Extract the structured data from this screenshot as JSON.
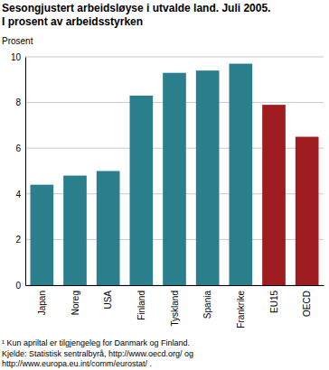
{
  "chart_data": {
    "type": "bar",
    "title": "Sesongjustert arbeidsløyse i utvalde land. Juli 2005.",
    "subtitle": "I prosent av arbeidsstyrken",
    "y_label": "Prosent",
    "categories": [
      "Japan",
      "Noreg",
      "USA",
      "Finland",
      "Tyskland",
      "Spania",
      "Frankrike",
      "EU15",
      "OECD"
    ],
    "values": [
      4.4,
      4.8,
      5.0,
      8.3,
      9.3,
      9.4,
      9.7,
      7.9,
      6.5
    ],
    "colors": [
      "#2b7f8c",
      "#2b7f8c",
      "#2b7f8c",
      "#2b7f8c",
      "#2b7f8c",
      "#2b7f8c",
      "#2b7f8c",
      "#9e1b20",
      "#9e1b20"
    ],
    "ylim": [
      0,
      10
    ],
    "yticks": [
      0,
      2,
      4,
      6,
      8,
      10
    ],
    "grid": true,
    "annotations": [
      "¹ Kun apriltal er tilgjengeleg for Danmark og Finland.",
      "Kjelde: Statistisk sentralbyrå, http://www.oecd.org/ og",
      "http://www.europa.eu.int/comm/eurostat/ ."
    ]
  }
}
